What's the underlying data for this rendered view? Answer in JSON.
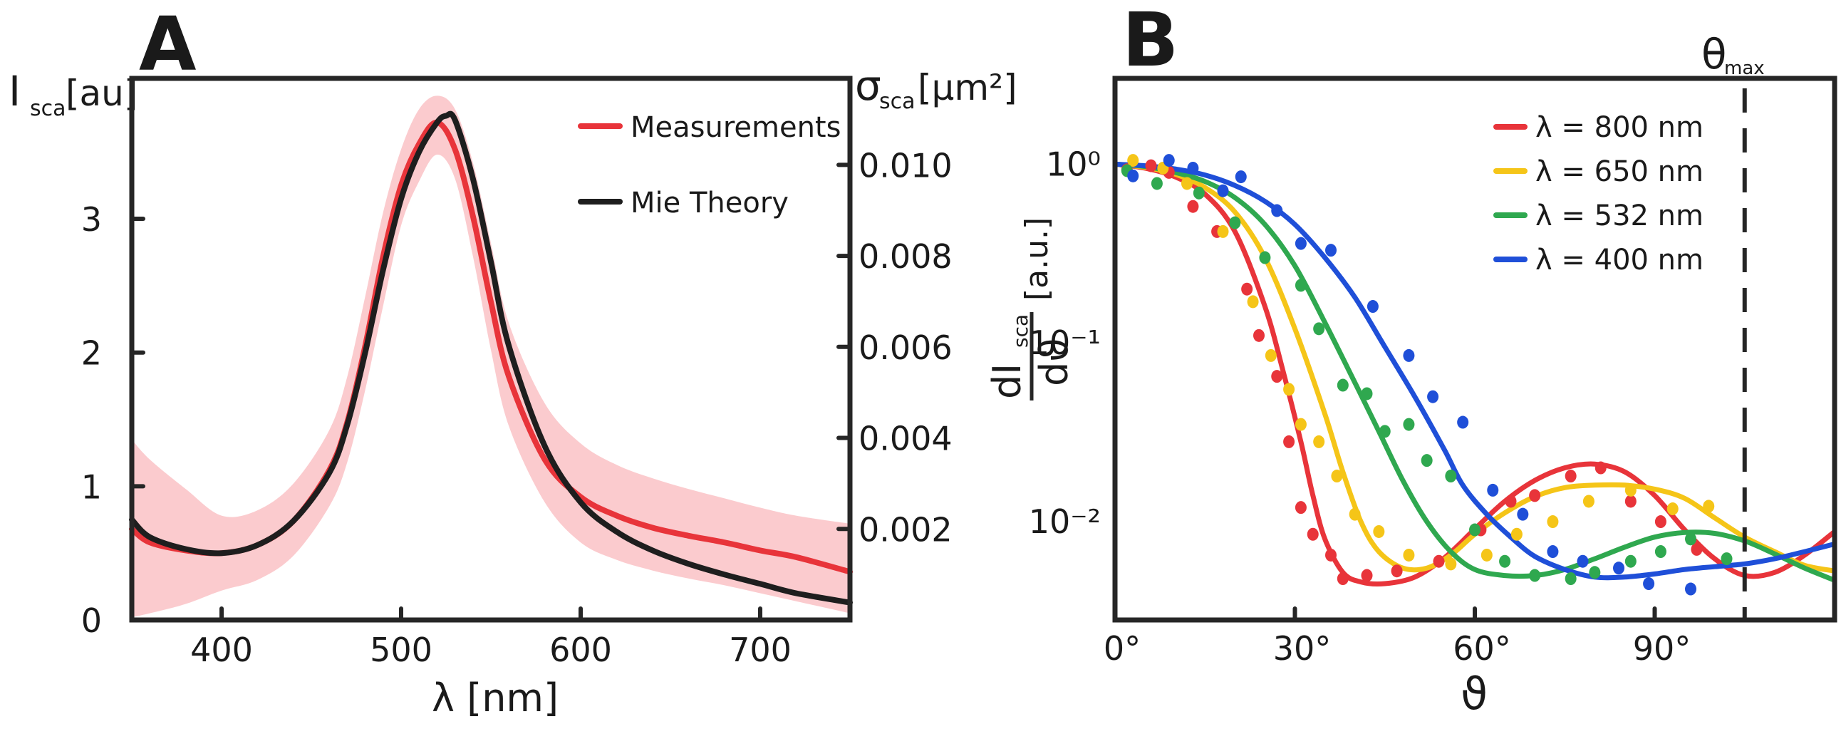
{
  "chart_data": [
    {
      "panel": "A",
      "type": "line",
      "xlabel": "λ [nm]",
      "ylabel": "I_sca [au]",
      "y2label": "σ_sca [μm²]",
      "xlim": [
        350,
        750
      ],
      "ylim": [
        0,
        4.05
      ],
      "y2lim": [
        0,
        0.0119
      ],
      "xticks": [
        400,
        500,
        600,
        700
      ],
      "yticks": [
        0,
        1,
        2,
        3
      ],
      "y2ticks": [
        0.002,
        0.004,
        0.006,
        0.008,
        0.01
      ],
      "y2tick_labels": [
        "0.002",
        "0.004",
        "0.006",
        "0.008",
        "0.010"
      ],
      "series": [
        {
          "name": "Measurements",
          "color": "#e8343a",
          "x": [
            350,
            360,
            380,
            400,
            420,
            440,
            460,
            470,
            480,
            490,
            500,
            510,
            520,
            530,
            540,
            550,
            560,
            580,
            600,
            620,
            640,
            660,
            680,
            700,
            720,
            750
          ],
          "y": [
            0.68,
            0.58,
            0.52,
            0.5,
            0.56,
            0.74,
            1.12,
            1.48,
            2.05,
            2.72,
            3.25,
            3.56,
            3.72,
            3.52,
            3.02,
            2.38,
            1.82,
            1.2,
            0.92,
            0.78,
            0.69,
            0.63,
            0.58,
            0.52,
            0.47,
            0.36
          ],
          "band_upper": [
            1.35,
            1.2,
            0.98,
            0.78,
            0.82,
            1.02,
            1.42,
            1.82,
            2.42,
            3.05,
            3.52,
            3.82,
            3.92,
            3.82,
            3.42,
            2.82,
            2.22,
            1.62,
            1.32,
            1.16,
            1.06,
            0.98,
            0.91,
            0.84,
            0.78,
            0.72
          ],
          "band_lower": [
            0.02,
            0.05,
            0.12,
            0.22,
            0.3,
            0.48,
            0.85,
            1.18,
            1.72,
            2.35,
            2.95,
            3.28,
            3.48,
            3.3,
            2.72,
            2.02,
            1.45,
            0.88,
            0.58,
            0.45,
            0.37,
            0.31,
            0.26,
            0.2,
            0.14,
            0.05
          ]
        },
        {
          "name": "Mie Theory",
          "color": "#1e1e1e",
          "x": [
            350,
            360,
            380,
            400,
            420,
            440,
            460,
            470,
            480,
            490,
            500,
            510,
            520,
            525,
            530,
            540,
            550,
            560,
            580,
            600,
            620,
            640,
            660,
            680,
            700,
            720,
            750
          ],
          "y": [
            0.75,
            0.62,
            0.53,
            0.5,
            0.56,
            0.74,
            1.1,
            1.46,
            2.0,
            2.62,
            3.15,
            3.5,
            3.72,
            3.77,
            3.74,
            3.3,
            2.68,
            2.05,
            1.3,
            0.88,
            0.66,
            0.52,
            0.42,
            0.34,
            0.27,
            0.2,
            0.13
          ]
        }
      ],
      "legend": {
        "position": "top-right",
        "entries": [
          "Measurements",
          "Mie Theory"
        ]
      }
    },
    {
      "panel": "B",
      "type": "line",
      "xlabel": "ϑ",
      "ylabel": "dI_sca/dϑ [a.u.]",
      "xlim": [
        0,
        120
      ],
      "ylim_log10": [
        -2.55,
        0.48
      ],
      "yscale": "log",
      "xticks": [
        0,
        30,
        60,
        90
      ],
      "xtick_labels": [
        "0°",
        "30°",
        "60°",
        "90°"
      ],
      "yticks": [
        0,
        -1,
        -2
      ],
      "ytick_labels": [
        "10⁰",
        "10⁻¹",
        "10⁻²"
      ],
      "theta_max": {
        "label": "θ_max",
        "x": 105
      },
      "series": [
        {
          "name": "λ = 800 nm",
          "color": "#e8343a",
          "curve_x": [
            0,
            5,
            10,
            15,
            20,
            25,
            28,
            31,
            33,
            35,
            38,
            41,
            45,
            50,
            55,
            60,
            65,
            70,
            75,
            80,
            85,
            90,
            95,
            100,
            105,
            110,
            115,
            120
          ],
          "curve_y": [
            1.0,
            0.95,
            0.85,
            0.68,
            0.42,
            0.16,
            0.07,
            0.028,
            0.014,
            0.008,
            0.0052,
            0.0046,
            0.0045,
            0.0049,
            0.0063,
            0.0091,
            0.013,
            0.017,
            0.02,
            0.021,
            0.019,
            0.014,
            0.009,
            0.0062,
            0.005,
            0.0052,
            0.0065,
            0.0088
          ],
          "points_x": [
            2,
            6,
            9,
            13,
            17,
            22,
            24,
            27,
            29,
            31,
            33,
            36,
            38,
            42,
            47,
            54,
            61,
            66,
            70,
            76,
            81,
            86,
            91,
            97
          ],
          "points_y": [
            0.93,
            0.98,
            0.9,
            0.58,
            0.42,
            0.2,
            0.11,
            0.065,
            0.028,
            0.012,
            0.0085,
            0.0065,
            0.0048,
            0.005,
            0.0053,
            0.006,
            0.009,
            0.013,
            0.014,
            0.018,
            0.02,
            0.013,
            0.01,
            0.007
          ]
        },
        {
          "name": "λ = 650 nm",
          "color": "#f5c518",
          "curve_x": [
            0,
            5,
            10,
            15,
            20,
            25,
            30,
            35,
            38,
            41,
            44,
            48,
            52,
            56,
            60,
            65,
            70,
            75,
            80,
            85,
            90,
            95,
            100,
            105,
            110,
            115,
            120
          ],
          "curve_y": [
            1.0,
            0.96,
            0.88,
            0.74,
            0.54,
            0.3,
            0.12,
            0.04,
            0.019,
            0.01,
            0.0068,
            0.0055,
            0.0055,
            0.0065,
            0.0085,
            0.0112,
            0.0138,
            0.0155,
            0.016,
            0.016,
            0.0152,
            0.0135,
            0.0105,
            0.0082,
            0.0068,
            0.0057,
            0.0053
          ],
          "points_x": [
            3,
            8,
            12,
            18,
            23,
            26,
            29,
            31,
            34,
            37,
            40,
            44,
            49,
            56,
            62,
            67,
            73,
            79,
            86,
            93,
            99
          ],
          "points_y": [
            1.05,
            0.95,
            0.78,
            0.42,
            0.17,
            0.085,
            0.055,
            0.035,
            0.028,
            0.018,
            0.011,
            0.0088,
            0.0065,
            0.0058,
            0.0065,
            0.0085,
            0.01,
            0.013,
            0.015,
            0.0118,
            0.0122
          ]
        },
        {
          "name": "λ = 532 nm",
          "color": "#2fa84f",
          "curve_x": [
            0,
            5,
            10,
            15,
            20,
            25,
            30,
            35,
            40,
            44,
            48,
            52,
            56,
            60,
            65,
            70,
            75,
            80,
            85,
            90,
            95,
            100,
            105,
            110,
            115,
            120
          ],
          "curve_y": [
            1.0,
            0.97,
            0.9,
            0.8,
            0.65,
            0.46,
            0.27,
            0.13,
            0.06,
            0.032,
            0.017,
            0.01,
            0.0068,
            0.0054,
            0.005,
            0.005,
            0.0054,
            0.0062,
            0.0072,
            0.0082,
            0.0087,
            0.0086,
            0.0078,
            0.0066,
            0.0055,
            0.0047
          ],
          "points_x": [
            2,
            7,
            14,
            20,
            25,
            31,
            34,
            38,
            42,
            45,
            49,
            52,
            56,
            60,
            65,
            70,
            76,
            80,
            86,
            91,
            96,
            102
          ],
          "points_y": [
            0.92,
            0.78,
            0.69,
            0.47,
            0.3,
            0.21,
            0.12,
            0.058,
            0.052,
            0.032,
            0.035,
            0.022,
            0.018,
            0.009,
            0.006,
            0.005,
            0.0048,
            0.0052,
            0.006,
            0.0068,
            0.008,
            0.0062
          ]
        },
        {
          "name": "λ = 400 nm",
          "color": "#1f4fd8",
          "curve_x": [
            0,
            5,
            10,
            15,
            20,
            25,
            30,
            35,
            40,
            45,
            50,
            55,
            58,
            62,
            66,
            70,
            75,
            80,
            85,
            90,
            95,
            100,
            105,
            110,
            115,
            120
          ],
          "curve_y": [
            1.0,
            0.98,
            0.94,
            0.87,
            0.76,
            0.62,
            0.46,
            0.3,
            0.18,
            0.095,
            0.05,
            0.025,
            0.016,
            0.011,
            0.0082,
            0.0064,
            0.0054,
            0.0049,
            0.0049,
            0.0051,
            0.0054,
            0.0056,
            0.0058,
            0.0062,
            0.0068,
            0.0075
          ],
          "points_x": [
            3,
            9,
            13,
            18,
            21,
            27,
            31,
            36,
            43,
            49,
            53,
            58,
            63,
            68,
            73,
            78,
            84,
            89,
            96
          ],
          "points_y": [
            0.86,
            1.05,
            0.95,
            0.71,
            0.85,
            0.55,
            0.36,
            0.33,
            0.16,
            0.085,
            0.05,
            0.036,
            0.015,
            0.011,
            0.0068,
            0.006,
            0.0055,
            0.0045,
            0.0042
          ]
        }
      ],
      "legend": {
        "position": "top-right",
        "entries": [
          "λ = 800 nm",
          "λ = 650 nm",
          "λ = 532 nm",
          "λ = 400 nm"
        ]
      }
    }
  ],
  "labels": {
    "panel_a_letter": "A",
    "panel_b_letter": "B",
    "a_ylabel_main": "I",
    "a_ylabel_sub": "sca",
    "a_ylabel_unit": "[au]",
    "a_y2label_main": "σ",
    "a_y2label_sub": "sca",
    "a_y2label_unit": "[μm²]",
    "a_xlabel": "λ [nm]",
    "b_xlabel": "ϑ",
    "b_ylabel_num": "dI",
    "b_ylabel_sub": "sca",
    "b_ylabel_den": "dϑ",
    "b_ylabel_unit": "[a.u.]",
    "b_theta_max_main": "θ",
    "b_theta_max_sub": "max"
  }
}
